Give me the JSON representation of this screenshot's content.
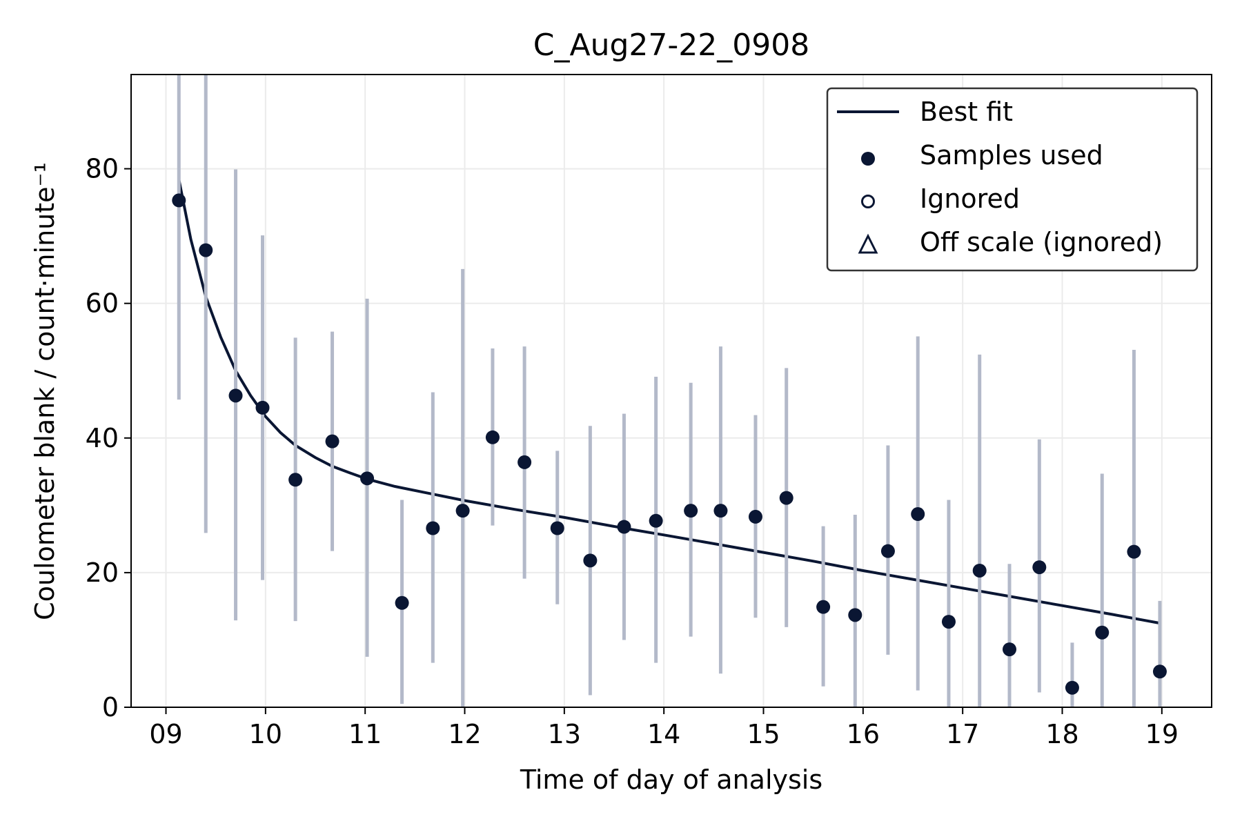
{
  "chart_data": {
    "type": "scatter",
    "title": "C_Aug27-22_0908",
    "xlabel": "Time of day of analysis",
    "ylabel": "Coulometer blank / count·minute⁻¹",
    "xlim": [
      8.65,
      19.5
    ],
    "ylim": [
      0,
      94
    ],
    "xticks": [
      9,
      10,
      11,
      12,
      13,
      14,
      15,
      16,
      17,
      18,
      19
    ],
    "xtick_labels": [
      "09",
      "10",
      "11",
      "12",
      "13",
      "14",
      "15",
      "16",
      "17",
      "18",
      "19"
    ],
    "yticks": [
      0,
      20,
      40,
      60,
      80
    ],
    "ytick_labels": [
      "0",
      "20",
      "40",
      "60",
      "80"
    ],
    "grid": true,
    "legend_position": "top-right",
    "legend": [
      "Best fit",
      "Samples used",
      "Ignored",
      "Off scale (ignored)"
    ],
    "colors": {
      "primary": "#0a1633",
      "error_bar": "#b3b9c9",
      "grid": "#ebebeb"
    },
    "series": [
      {
        "name": "Samples used",
        "points": [
          {
            "x": 9.13,
            "y": 75.3,
            "ylow": 45.7,
            "yhigh": 94
          },
          {
            "x": 9.4,
            "y": 67.9,
            "ylow": 25.9,
            "yhigh": 94
          },
          {
            "x": 9.7,
            "y": 46.3,
            "ylow": 12.9,
            "yhigh": 79.9
          },
          {
            "x": 9.97,
            "y": 44.5,
            "ylow": 18.9,
            "yhigh": 70.1
          },
          {
            "x": 10.3,
            "y": 33.8,
            "ylow": 12.8,
            "yhigh": 54.9
          },
          {
            "x": 10.67,
            "y": 39.5,
            "ylow": 23.2,
            "yhigh": 55.8
          },
          {
            "x": 11.02,
            "y": 34.0,
            "ylow": 7.5,
            "yhigh": 60.7
          },
          {
            "x": 11.37,
            "y": 15.5,
            "ylow": 0.5,
            "yhigh": 30.8
          },
          {
            "x": 11.68,
            "y": 26.6,
            "ylow": 6.6,
            "yhigh": 46.8
          },
          {
            "x": 11.98,
            "y": 29.2,
            "ylow": 0,
            "yhigh": 65.1
          },
          {
            "x": 12.28,
            "y": 40.1,
            "ylow": 27.0,
            "yhigh": 53.3
          },
          {
            "x": 12.6,
            "y": 36.4,
            "ylow": 19.1,
            "yhigh": 53.6
          },
          {
            "x": 12.93,
            "y": 26.6,
            "ylow": 15.3,
            "yhigh": 38.1
          },
          {
            "x": 13.26,
            "y": 21.8,
            "ylow": 1.8,
            "yhigh": 41.8
          },
          {
            "x": 13.6,
            "y": 26.8,
            "ylow": 10.0,
            "yhigh": 43.6
          },
          {
            "x": 13.92,
            "y": 27.7,
            "ylow": 6.6,
            "yhigh": 49.1
          },
          {
            "x": 14.27,
            "y": 29.2,
            "ylow": 10.5,
            "yhigh": 48.2
          },
          {
            "x": 14.57,
            "y": 29.2,
            "ylow": 5.0,
            "yhigh": 53.6
          },
          {
            "x": 14.92,
            "y": 28.3,
            "ylow": 13.3,
            "yhigh": 43.4
          },
          {
            "x": 15.23,
            "y": 31.1,
            "ylow": 11.9,
            "yhigh": 50.4
          },
          {
            "x": 15.6,
            "y": 14.9,
            "ylow": 3.1,
            "yhigh": 26.9
          },
          {
            "x": 15.92,
            "y": 13.7,
            "ylow": 0,
            "yhigh": 28.6
          },
          {
            "x": 16.25,
            "y": 23.2,
            "ylow": 7.8,
            "yhigh": 38.9
          },
          {
            "x": 16.55,
            "y": 28.7,
            "ylow": 2.5,
            "yhigh": 55.1
          },
          {
            "x": 16.86,
            "y": 12.7,
            "ylow": 0,
            "yhigh": 30.8
          },
          {
            "x": 17.17,
            "y": 20.3,
            "ylow": 0,
            "yhigh": 52.4
          },
          {
            "x": 17.47,
            "y": 8.6,
            "ylow": 0,
            "yhigh": 21.3
          },
          {
            "x": 17.77,
            "y": 20.8,
            "ylow": 2.2,
            "yhigh": 39.8
          },
          {
            "x": 18.1,
            "y": 2.9,
            "ylow": 0,
            "yhigh": 9.6
          },
          {
            "x": 18.4,
            "y": 11.1,
            "ylow": 0,
            "yhigh": 34.7
          },
          {
            "x": 18.72,
            "y": 23.1,
            "ylow": 0,
            "yhigh": 53.1
          },
          {
            "x": 18.98,
            "y": 5.3,
            "ylow": 0,
            "yhigh": 15.8
          }
        ]
      },
      {
        "name": "Best fit",
        "points": [
          {
            "x": 9.13,
            "y": 78.4
          },
          {
            "x": 9.25,
            "y": 69.5
          },
          {
            "x": 9.4,
            "y": 61.0
          },
          {
            "x": 9.55,
            "y": 55.0
          },
          {
            "x": 9.7,
            "y": 50.0
          },
          {
            "x": 9.85,
            "y": 46.3
          },
          {
            "x": 10.0,
            "y": 43.2
          },
          {
            "x": 10.15,
            "y": 40.8
          },
          {
            "x": 10.3,
            "y": 38.9
          },
          {
            "x": 10.5,
            "y": 37.1
          },
          {
            "x": 10.67,
            "y": 35.8
          },
          {
            "x": 10.85,
            "y": 34.8
          },
          {
            "x": 11.02,
            "y": 33.9
          },
          {
            "x": 11.3,
            "y": 32.8
          },
          {
            "x": 11.6,
            "y": 31.9
          },
          {
            "x": 12.0,
            "y": 30.7
          },
          {
            "x": 12.5,
            "y": 29.4
          },
          {
            "x": 13.0,
            "y": 28.2
          },
          {
            "x": 13.6,
            "y": 26.6
          },
          {
            "x": 14.0,
            "y": 25.6
          },
          {
            "x": 14.5,
            "y": 24.3
          },
          {
            "x": 15.0,
            "y": 23.0
          },
          {
            "x": 15.5,
            "y": 21.7
          },
          {
            "x": 16.0,
            "y": 20.3
          },
          {
            "x": 16.5,
            "y": 19.0
          },
          {
            "x": 17.0,
            "y": 17.7
          },
          {
            "x": 17.5,
            "y": 16.4
          },
          {
            "x": 18.0,
            "y": 15.1
          },
          {
            "x": 18.5,
            "y": 13.8
          },
          {
            "x": 18.98,
            "y": 12.5
          }
        ]
      }
    ]
  }
}
